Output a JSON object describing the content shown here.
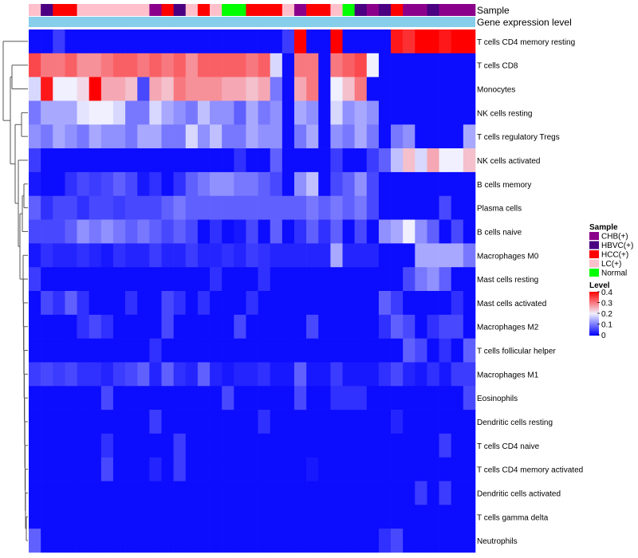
{
  "chart_data": {
    "type": "heatmap",
    "title": "",
    "annotation_tracks": [
      "Sample",
      "Gene expression level"
    ],
    "sample_track": [
      "LC(+)",
      "HBVC(+)",
      "HCC(+)",
      "HCC(+)",
      "LC(+)",
      "LC(+)",
      "LC(+)",
      "LC(+)",
      "LC(+)",
      "LC(+)",
      "CHB(+)",
      "HCC(+)",
      "HBVC(+)",
      "LC(+)",
      "HCC(+)",
      "LC(+)",
      "Normal",
      "Normal",
      "HCC(+)",
      "HCC(+)",
      "HCC(+)",
      "LC(+)",
      "CHB(+)",
      "HCC(+)",
      "HCC(+)",
      "LC(+)",
      "Normal",
      "HBVC(+)",
      "CHB(+)",
      "HBVC(+)",
      "HCC(+)",
      "CHB(+)",
      "CHB(+)",
      "HBVC(+)",
      "CHB(+)",
      "CHB(+)",
      "CHB(+)"
    ],
    "gene_expression_track_color": "#87ceeb",
    "rows": [
      "T cells CD4 memory resting",
      "T cells CD8",
      "Monocytes",
      "NK cells resting",
      "T cells regulatory  Tregs",
      "NK cells activated",
      "B cells memory",
      "Plasma cells",
      "B cells naive",
      "Macrophages M0",
      "Mast cells resting",
      "Mast cells activated",
      "Macrophages M2",
      "T cells follicular helper",
      "Macrophages M1",
      "Eosinophils",
      "Dendritic cells resting",
      "T cells CD4 naive",
      "T cells CD4 memory activated",
      "Dendritic cells activated",
      "T cells gamma delta",
      "Neutrophils"
    ],
    "values": [
      [
        0.01,
        0.01,
        0.05,
        0.01,
        0.01,
        0.01,
        0.01,
        0.01,
        0.01,
        0.01,
        0.01,
        0.01,
        0.01,
        0.01,
        0.01,
        0.01,
        0.01,
        0.01,
        0.01,
        0.01,
        0.01,
        0.05,
        0.42,
        0.01,
        0.01,
        0.42,
        0.01,
        0.01,
        0.01,
        0.01,
        0.38,
        0.36,
        0.42,
        0.42,
        0.38,
        0.42,
        0.42
      ],
      [
        0.34,
        0.3,
        0.3,
        0.32,
        0.28,
        0.28,
        0.3,
        0.32,
        0.32,
        0.3,
        0.32,
        0.3,
        0.32,
        0.28,
        0.32,
        0.32,
        0.32,
        0.32,
        0.3,
        0.32,
        0.18,
        0.01,
        0.3,
        0.3,
        0.01,
        0.3,
        0.32,
        0.34,
        0.2,
        0.01,
        0.01,
        0.01,
        0.01,
        0.01,
        0.01,
        0.01,
        0.01
      ],
      [
        0.18,
        0.38,
        0.2,
        0.2,
        0.22,
        0.42,
        0.26,
        0.26,
        0.24,
        0.06,
        0.26,
        0.24,
        0.3,
        0.28,
        0.28,
        0.28,
        0.26,
        0.26,
        0.24,
        0.26,
        0.1,
        0.01,
        0.26,
        0.3,
        0.01,
        0.2,
        0.24,
        0.3,
        0.01,
        0.01,
        0.01,
        0.01,
        0.01,
        0.01,
        0.01,
        0.01,
        0.01
      ],
      [
        0.1,
        0.14,
        0.14,
        0.14,
        0.19,
        0.2,
        0.2,
        0.18,
        0.1,
        0.1,
        0.18,
        0.14,
        0.12,
        0.1,
        0.16,
        0.12,
        0.12,
        0.08,
        0.14,
        0.1,
        0.12,
        0.01,
        0.14,
        0.12,
        0.01,
        0.18,
        0.12,
        0.14,
        0.12,
        0.01,
        0.01,
        0.01,
        0.01,
        0.01,
        0.01,
        0.01,
        0.01
      ],
      [
        0.12,
        0.1,
        0.14,
        0.12,
        0.1,
        0.14,
        0.12,
        0.12,
        0.1,
        0.14,
        0.14,
        0.1,
        0.1,
        0.18,
        0.12,
        0.16,
        0.1,
        0.1,
        0.14,
        0.12,
        0.12,
        0.01,
        0.1,
        0.14,
        0.01,
        0.12,
        0.1,
        0.14,
        0.1,
        0.01,
        0.1,
        0.12,
        0.01,
        0.01,
        0.01,
        0.01,
        0.14
      ],
      [
        0.05,
        0.01,
        0.01,
        0.01,
        0.01,
        0.01,
        0.01,
        0.01,
        0.01,
        0.01,
        0.01,
        0.01,
        0.01,
        0.01,
        0.01,
        0.01,
        0.01,
        0.04,
        0.01,
        0.01,
        0.08,
        0.01,
        0.01,
        0.01,
        0.01,
        0.05,
        0.01,
        0.01,
        0.05,
        0.08,
        0.16,
        0.24,
        0.18,
        0.26,
        0.2,
        0.2,
        0.24
      ],
      [
        0.02,
        0.01,
        0.01,
        0.04,
        0.06,
        0.05,
        0.06,
        0.08,
        0.06,
        0.02,
        0.04,
        0.01,
        0.04,
        0.08,
        0.1,
        0.12,
        0.12,
        0.1,
        0.1,
        0.08,
        0.06,
        0.01,
        0.12,
        0.16,
        0.01,
        0.06,
        0.08,
        0.12,
        0.06,
        0.01,
        0.01,
        0.01,
        0.01,
        0.01,
        0.01,
        0.01,
        0.01
      ],
      [
        0.08,
        0.04,
        0.06,
        0.06,
        0.04,
        0.06,
        0.06,
        0.05,
        0.06,
        0.06,
        0.06,
        0.08,
        0.1,
        0.08,
        0.08,
        0.08,
        0.08,
        0.08,
        0.08,
        0.08,
        0.08,
        0.08,
        0.08,
        0.1,
        0.08,
        0.1,
        0.08,
        0.1,
        0.06,
        0.01,
        0.01,
        0.01,
        0.01,
        0.01,
        0.06,
        0.01,
        0.01
      ],
      [
        0.06,
        0.06,
        0.06,
        0.08,
        0.12,
        0.1,
        0.12,
        0.1,
        0.08,
        0.1,
        0.08,
        0.06,
        0.08,
        0.06,
        0.01,
        0.04,
        0.01,
        0.02,
        0.06,
        0.01,
        0.08,
        0.01,
        0.04,
        0.08,
        0.04,
        0.08,
        0.01,
        0.06,
        0.01,
        0.12,
        0.14,
        0.2,
        0.12,
        0.08,
        0.01,
        0.06,
        0.01
      ],
      [
        0.02,
        0.04,
        0.03,
        0.03,
        0.04,
        0.03,
        0.02,
        0.04,
        0.03,
        0.03,
        0.05,
        0.03,
        0.03,
        0.05,
        0.03,
        0.03,
        0.04,
        0.03,
        0.05,
        0.04,
        0.03,
        0.03,
        0.03,
        0.03,
        0.03,
        0.14,
        0.03,
        0.03,
        0.03,
        0.01,
        0.01,
        0.01,
        0.14,
        0.14,
        0.14,
        0.14,
        0.1
      ],
      [
        0.05,
        0.01,
        0.01,
        0.01,
        0.01,
        0.01,
        0.01,
        0.01,
        0.01,
        0.01,
        0.01,
        0.01,
        0.01,
        0.01,
        0.01,
        0.04,
        0.01,
        0.01,
        0.01,
        0.04,
        0.01,
        0.01,
        0.01,
        0.01,
        0.01,
        0.01,
        0.01,
        0.01,
        0.01,
        0.01,
        0.01,
        0.06,
        0.1,
        0.12,
        0.08,
        0.01,
        0.01
      ],
      [
        0.01,
        0.06,
        0.04,
        0.08,
        0.04,
        0.01,
        0.01,
        0.01,
        0.04,
        0.01,
        0.01,
        0.06,
        0.04,
        0.01,
        0.04,
        0.01,
        0.01,
        0.01,
        0.04,
        0.01,
        0.01,
        0.01,
        0.01,
        0.01,
        0.01,
        0.01,
        0.01,
        0.01,
        0.01,
        0.08,
        0.05,
        0.01,
        0.01,
        0.01,
        0.01,
        0.04,
        0.01
      ],
      [
        0.01,
        0.01,
        0.01,
        0.01,
        0.04,
        0.06,
        0.04,
        0.01,
        0.01,
        0.01,
        0.01,
        0.06,
        0.01,
        0.01,
        0.01,
        0.01,
        0.01,
        0.06,
        0.01,
        0.01,
        0.01,
        0.01,
        0.01,
        0.06,
        0.01,
        0.01,
        0.01,
        0.01,
        0.01,
        0.04,
        0.08,
        0.06,
        0.01,
        0.04,
        0.06,
        0.06,
        0.01
      ],
      [
        0.01,
        0.01,
        0.01,
        0.01,
        0.01,
        0.01,
        0.01,
        0.01,
        0.01,
        0.01,
        0.04,
        0.01,
        0.01,
        0.01,
        0.01,
        0.01,
        0.01,
        0.01,
        0.01,
        0.01,
        0.01,
        0.01,
        0.01,
        0.01,
        0.01,
        0.01,
        0.01,
        0.01,
        0.01,
        0.01,
        0.01,
        0.08,
        0.06,
        0.01,
        0.04,
        0.01,
        0.08
      ],
      [
        0.05,
        0.06,
        0.05,
        0.06,
        0.04,
        0.04,
        0.03,
        0.05,
        0.06,
        0.08,
        0.03,
        0.08,
        0.04,
        0.03,
        0.08,
        0.03,
        0.02,
        0.03,
        0.03,
        0.04,
        0.02,
        0.02,
        0.08,
        0.02,
        0.02,
        0.05,
        0.02,
        0.02,
        0.02,
        0.04,
        0.06,
        0.03,
        0.02,
        0.04,
        0.02,
        0.05,
        0.05
      ],
      [
        0.01,
        0.01,
        0.01,
        0.01,
        0.01,
        0.01,
        0.06,
        0.01,
        0.01,
        0.01,
        0.01,
        0.01,
        0.01,
        0.01,
        0.01,
        0.01,
        0.06,
        0.01,
        0.01,
        0.01,
        0.01,
        0.01,
        0.06,
        0.01,
        0.01,
        0.04,
        0.04,
        0.04,
        0.01,
        0.01,
        0.01,
        0.01,
        0.01,
        0.01,
        0.01,
        0.01,
        0.06
      ],
      [
        0.01,
        0.01,
        0.01,
        0.01,
        0.01,
        0.01,
        0.01,
        0.01,
        0.01,
        0.01,
        0.05,
        0.01,
        0.01,
        0.01,
        0.01,
        0.01,
        0.01,
        0.01,
        0.01,
        0.04,
        0.01,
        0.01,
        0.01,
        0.01,
        0.01,
        0.01,
        0.01,
        0.01,
        0.01,
        0.01,
        0.03,
        0.01,
        0.01,
        0.01,
        0.01,
        0.01,
        0.01
      ],
      [
        0.01,
        0.01,
        0.01,
        0.01,
        0.01,
        0.01,
        0.04,
        0.01,
        0.01,
        0.01,
        0.01,
        0.01,
        0.05,
        0.01,
        0.01,
        0.01,
        0.01,
        0.01,
        0.01,
        0.01,
        0.01,
        0.01,
        0.01,
        0.01,
        0.01,
        0.01,
        0.01,
        0.01,
        0.01,
        0.01,
        0.01,
        0.01,
        0.01,
        0.01,
        0.05,
        0.01,
        0.01
      ],
      [
        0.01,
        0.01,
        0.01,
        0.01,
        0.01,
        0.01,
        0.06,
        0.01,
        0.01,
        0.01,
        0.03,
        0.01,
        0.05,
        0.01,
        0.01,
        0.01,
        0.01,
        0.01,
        0.01,
        0.01,
        0.01,
        0.01,
        0.01,
        0.02,
        0.01,
        0.01,
        0.01,
        0.01,
        0.01,
        0.01,
        0.01,
        0.01,
        0.01,
        0.01,
        0.01,
        0.01,
        0.01
      ],
      [
        0.01,
        0.01,
        0.01,
        0.01,
        0.01,
        0.01,
        0.01,
        0.01,
        0.01,
        0.01,
        0.01,
        0.01,
        0.01,
        0.01,
        0.01,
        0.01,
        0.01,
        0.01,
        0.01,
        0.01,
        0.01,
        0.01,
        0.01,
        0.01,
        0.01,
        0.01,
        0.01,
        0.01,
        0.01,
        0.01,
        0.01,
        0.01,
        0.05,
        0.01,
        0.05,
        0.01,
        0.01
      ],
      [
        0.01,
        0.01,
        0.01,
        0.01,
        0.01,
        0.01,
        0.01,
        0.01,
        0.01,
        0.01,
        0.01,
        0.01,
        0.01,
        0.01,
        0.01,
        0.01,
        0.01,
        0.01,
        0.01,
        0.01,
        0.01,
        0.01,
        0.01,
        0.01,
        0.01,
        0.01,
        0.01,
        0.01,
        0.01,
        0.01,
        0.01,
        0.01,
        0.01,
        0.01,
        0.01,
        0.01,
        0.01
      ],
      [
        0.08,
        0.01,
        0.01,
        0.01,
        0.01,
        0.01,
        0.01,
        0.01,
        0.01,
        0.01,
        0.01,
        0.01,
        0.01,
        0.01,
        0.01,
        0.01,
        0.01,
        0.01,
        0.01,
        0.01,
        0.01,
        0.01,
        0.01,
        0.01,
        0.01,
        0.01,
        0.01,
        0.01,
        0.01,
        0.04,
        0.06,
        0.01,
        0.01,
        0.01,
        0.01,
        0.01,
        0.01
      ]
    ],
    "color_scale": {
      "stops": [
        {
          "value": 0,
          "color": "#0000ff"
        },
        {
          "value": 0.2,
          "color": "#f0f0ff"
        },
        {
          "value": 0.4,
          "color": "#ff0000"
        }
      ]
    },
    "legend": {
      "sample_title": "Sample",
      "sample_entries": [
        {
          "label": "CHB(+)",
          "color": "#8b008b"
        },
        {
          "label": "HBVC(+)",
          "color": "#4b0082"
        },
        {
          "label": "HCC(+)",
          "color": "#ff0000"
        },
        {
          "label": "LC(+)",
          "color": "#ffc0cb"
        },
        {
          "label": "Normal",
          "color": "#00ff00"
        }
      ],
      "level_title": "Level",
      "level_ticks": [
        "0.4",
        "0.3",
        "0.2",
        "0.1",
        "0"
      ],
      "placement": "right"
    }
  }
}
